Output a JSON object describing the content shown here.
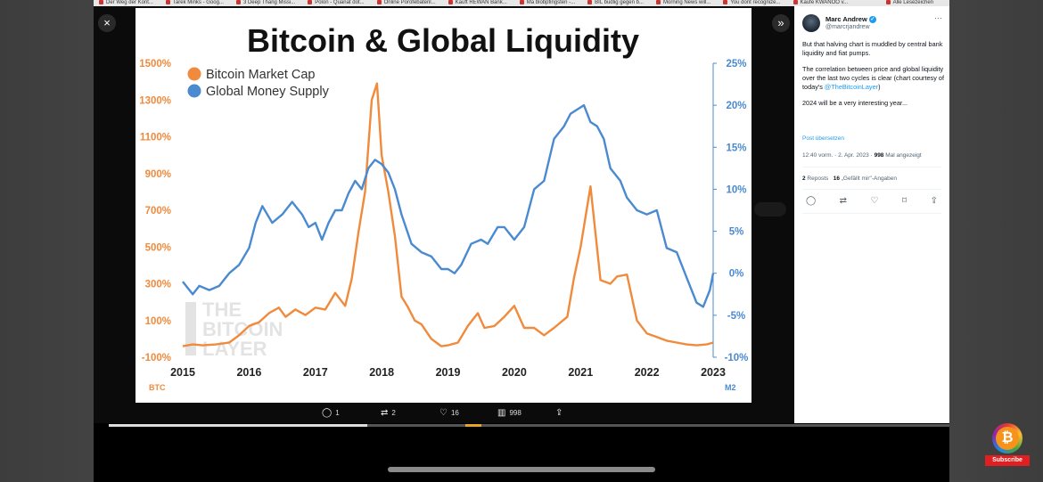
{
  "browser": {
    "bookmarks": [
      "Der Weg der Kont...",
      "Tarek Minks - Goog...",
      "3 Deep Thang Missi...",
      "Polon - Quanat dot...",
      "Online Porofebatenl...",
      "Kauft REWAN Bank...",
      "Ma blobpfingsten -...",
      "BIL budlig gegen b...",
      "Morning News will...",
      "You dont recognize...",
      "Kaufe KWANOO v..."
    ],
    "bookmarks_right": "Alle Lesezeichen"
  },
  "viewer": {
    "close_icon": "×",
    "expand_icon": "»",
    "actions": [
      {
        "name": "reply",
        "icon": "comment-icon",
        "glyph": "◯",
        "count": "1"
      },
      {
        "name": "repost",
        "icon": "repost-icon",
        "glyph": "⇄",
        "count": "2"
      },
      {
        "name": "like",
        "icon": "heart-icon",
        "glyph": "♡",
        "count": "16"
      },
      {
        "name": "views",
        "icon": "views-icon",
        "glyph": "▥",
        "count": "998"
      },
      {
        "name": "share",
        "icon": "share-icon",
        "glyph": "⇪",
        "count": ""
      }
    ]
  },
  "slide": {
    "title": "Bitcoin & Global Liquidity",
    "watermark_line1": "THE",
    "watermark_line2": "BITCOIN",
    "watermark_line3": "LAYER",
    "left_axis_unit": "BTC",
    "right_axis_unit": "M2"
  },
  "chart_data": {
    "type": "line",
    "title": "Bitcoin & Global Liquidity",
    "x_ticks": [
      "2015",
      "2016",
      "2017",
      "2018",
      "2019",
      "2020",
      "2021",
      "2022",
      "2023"
    ],
    "xlim": [
      2015,
      2023
    ],
    "y_left": {
      "label": "BTC",
      "ticks": [
        "1500%",
        "1300%",
        "1100%",
        "900%",
        "700%",
        "500%",
        "300%",
        "100%",
        "-100%"
      ],
      "lim": [
        -100,
        1500
      ],
      "color": "#f08a3c"
    },
    "y_right": {
      "label": "M2",
      "ticks": [
        "25%",
        "20%",
        "15%",
        "10%",
        "5%",
        "0%",
        "-5%",
        "-10%"
      ],
      "lim": [
        -10,
        25
      ],
      "color": "#4a8ad0"
    },
    "legend": {
      "placement": "top-left",
      "entries": [
        "Bitcoin Market Cap",
        "Global Money Supply"
      ]
    },
    "grid": false,
    "series": [
      {
        "name": "Bitcoin Market Cap",
        "axis": "left",
        "color": "#f08a3c",
        "points": [
          [
            2015.0,
            -40
          ],
          [
            2015.15,
            -30
          ],
          [
            2015.3,
            -35
          ],
          [
            2015.5,
            -30
          ],
          [
            2015.7,
            -20
          ],
          [
            2015.85,
            20
          ],
          [
            2016.0,
            70
          ],
          [
            2016.15,
            90
          ],
          [
            2016.3,
            140
          ],
          [
            2016.45,
            170
          ],
          [
            2016.55,
            120
          ],
          [
            2016.7,
            160
          ],
          [
            2016.85,
            130
          ],
          [
            2017.0,
            170
          ],
          [
            2017.15,
            160
          ],
          [
            2017.3,
            250
          ],
          [
            2017.45,
            180
          ],
          [
            2017.55,
            330
          ],
          [
            2017.65,
            580
          ],
          [
            2017.75,
            800
          ],
          [
            2017.85,
            1300
          ],
          [
            2017.93,
            1390
          ],
          [
            2018.0,
            1000
          ],
          [
            2018.1,
            800
          ],
          [
            2018.2,
            560
          ],
          [
            2018.3,
            230
          ],
          [
            2018.4,
            170
          ],
          [
            2018.5,
            100
          ],
          [
            2018.6,
            80
          ],
          [
            2018.75,
            0
          ],
          [
            2018.9,
            -40
          ],
          [
            2019.0,
            -35
          ],
          [
            2019.15,
            -20
          ],
          [
            2019.3,
            70
          ],
          [
            2019.45,
            140
          ],
          [
            2019.55,
            60
          ],
          [
            2019.7,
            70
          ],
          [
            2019.85,
            120
          ],
          [
            2020.0,
            180
          ],
          [
            2020.15,
            60
          ],
          [
            2020.3,
            60
          ],
          [
            2020.45,
            20
          ],
          [
            2020.6,
            60
          ],
          [
            2020.8,
            120
          ],
          [
            2020.9,
            330
          ],
          [
            2021.0,
            500
          ],
          [
            2021.15,
            830
          ],
          [
            2021.3,
            320
          ],
          [
            2021.45,
            300
          ],
          [
            2021.55,
            340
          ],
          [
            2021.7,
            350
          ],
          [
            2021.85,
            100
          ],
          [
            2022.0,
            30
          ],
          [
            2022.15,
            10
          ],
          [
            2022.3,
            -10
          ],
          [
            2022.45,
            -20
          ],
          [
            2022.6,
            -30
          ],
          [
            2022.75,
            -35
          ],
          [
            2022.9,
            -30
          ],
          [
            2023.0,
            -20
          ]
        ]
      },
      {
        "name": "Global Money Supply",
        "axis": "right",
        "color": "#4a8ad0",
        "points": [
          [
            2015.0,
            -1
          ],
          [
            2015.15,
            -2.5
          ],
          [
            2015.25,
            -1.5
          ],
          [
            2015.4,
            -2
          ],
          [
            2015.55,
            -1.5
          ],
          [
            2015.7,
            0
          ],
          [
            2015.85,
            1
          ],
          [
            2016.0,
            3
          ],
          [
            2016.1,
            6
          ],
          [
            2016.2,
            8
          ],
          [
            2016.35,
            6
          ],
          [
            2016.5,
            7
          ],
          [
            2016.65,
            8.5
          ],
          [
            2016.8,
            7
          ],
          [
            2016.9,
            5.5
          ],
          [
            2017.0,
            6
          ],
          [
            2017.1,
            4
          ],
          [
            2017.2,
            6
          ],
          [
            2017.3,
            7.5
          ],
          [
            2017.4,
            7.5
          ],
          [
            2017.5,
            9.5
          ],
          [
            2017.6,
            11
          ],
          [
            2017.7,
            10
          ],
          [
            2017.8,
            12.5
          ],
          [
            2017.9,
            13.5
          ],
          [
            2018.0,
            13
          ],
          [
            2018.1,
            12
          ],
          [
            2018.2,
            10
          ],
          [
            2018.3,
            7
          ],
          [
            2018.45,
            3.5
          ],
          [
            2018.6,
            2.5
          ],
          [
            2018.75,
            2
          ],
          [
            2018.9,
            0.5
          ],
          [
            2019.0,
            0.5
          ],
          [
            2019.1,
            0
          ],
          [
            2019.2,
            1
          ],
          [
            2019.35,
            3.5
          ],
          [
            2019.5,
            4
          ],
          [
            2019.6,
            3.5
          ],
          [
            2019.75,
            5.5
          ],
          [
            2019.85,
            5.5
          ],
          [
            2020.0,
            4
          ],
          [
            2020.15,
            5.5
          ],
          [
            2020.3,
            10
          ],
          [
            2020.45,
            11
          ],
          [
            2020.6,
            16
          ],
          [
            2020.75,
            17.5
          ],
          [
            2020.85,
            19
          ],
          [
            2020.95,
            19.5
          ],
          [
            2021.05,
            20
          ],
          [
            2021.15,
            18
          ],
          [
            2021.25,
            17.5
          ],
          [
            2021.35,
            16
          ],
          [
            2021.45,
            12.5
          ],
          [
            2021.6,
            11
          ],
          [
            2021.7,
            9
          ],
          [
            2021.85,
            7.5
          ],
          [
            2022.0,
            7
          ],
          [
            2022.15,
            7.5
          ],
          [
            2022.3,
            3
          ],
          [
            2022.45,
            2.5
          ],
          [
            2022.6,
            -0.5
          ],
          [
            2022.75,
            -3.5
          ],
          [
            2022.85,
            -4
          ],
          [
            2022.95,
            -2
          ],
          [
            2023.0,
            0
          ]
        ]
      }
    ]
  },
  "profile": {
    "name": "Marc Andrew",
    "verified_glyph": "✓",
    "handle": "@marcrjandrew",
    "more_glyph": "···",
    "tweet_p1": "But that halving chart is muddled by central bank liquidity and fiat pumps.",
    "tweet_p2_a": "The correlation between price and global liquidity over the last two cycles is clear (chart courtesy of today's ",
    "tweet_p2_link": "@TheBitcoinLayer",
    "tweet_p2_b": ")",
    "tweet_p3": "2024 will be a very interesting year...",
    "translate": "Post übersetzen",
    "timestamp": "12:40 vorm. · 2. Apr. 2023 · ",
    "views_count": "998",
    "views_label": " Mal angezeigt",
    "reposts_count": "2",
    "reposts_label": " Reposts",
    "likes_count": "16",
    "likes_label": " „Gefällt mir\"-Angaben"
  },
  "channel": {
    "subscribe_label": "Subscribe",
    "coin_glyph": "₿"
  },
  "colors": {
    "btc": "#f08a3c",
    "m2": "#4a8ad0",
    "link": "#1d9bf0",
    "subscribe": "#e02020"
  }
}
